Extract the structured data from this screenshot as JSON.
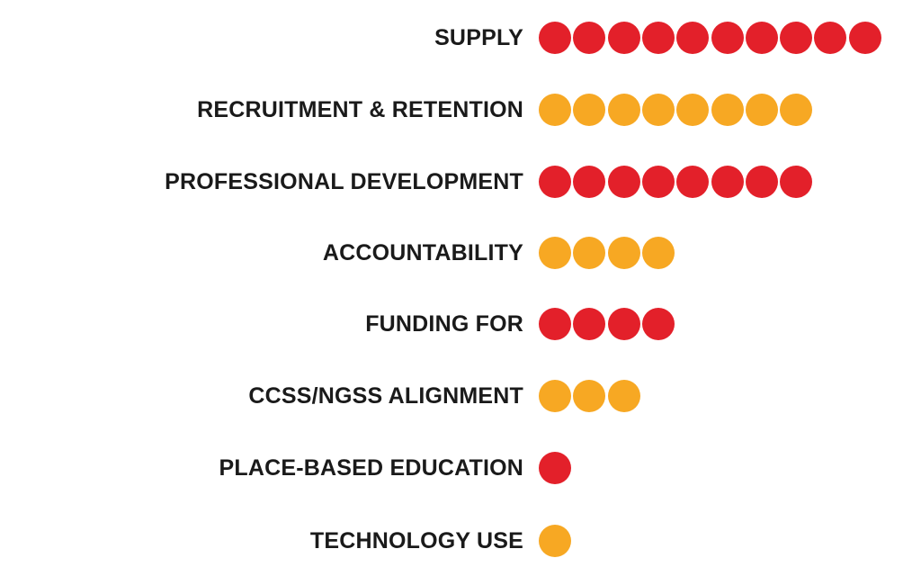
{
  "colors": {
    "red": "#e3202a",
    "orange": "#f7a823"
  },
  "chart_data": {
    "type": "bar",
    "title": "",
    "xlabel": "",
    "ylabel": "",
    "categories": [
      "SUPPLY",
      "RECRUITMENT & RETENTION",
      "PROFESSIONAL DEVELOPMENT",
      "ACCOUNTABILITY",
      "FUNDING FOR",
      "CCSS/NGSS ALIGNMENT",
      "PLACE-BASED EDUCATION",
      "TECHNOLOGY USE"
    ],
    "values": [
      10,
      8,
      8,
      4,
      4,
      3,
      1,
      1
    ],
    "point_colors": [
      "red",
      "orange",
      "red",
      "orange",
      "red",
      "orange",
      "red",
      "orange"
    ],
    "grid": false,
    "legend": "none"
  }
}
